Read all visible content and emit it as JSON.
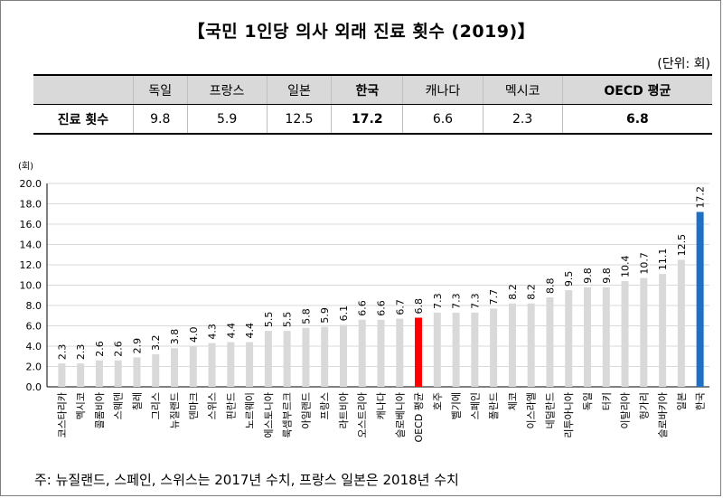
{
  "title": "【국민 1인당 의사 외래 진료 횟수 (2019)】",
  "unit": "(단위: 회)",
  "summary_table": {
    "row_label": "진료 횟수",
    "columns": [
      {
        "name": "독일",
        "value": "9.8",
        "bold": false
      },
      {
        "name": "프랑스",
        "value": "5.9",
        "bold": false
      },
      {
        "name": "일본",
        "value": "12.5",
        "bold": false
      },
      {
        "name": "한국",
        "value": "17.2",
        "bold": true
      },
      {
        "name": "캐나다",
        "value": "6.6",
        "bold": false
      },
      {
        "name": "멕시코",
        "value": "2.3",
        "bold": false
      },
      {
        "name": "OECD 평균",
        "value": "6.8",
        "bold": true
      }
    ]
  },
  "chart_data": {
    "type": "bar",
    "ylabel": "(회)",
    "ylim": [
      0,
      20
    ],
    "ytick_step": 2,
    "grid": true,
    "categories": [
      "코스타리카",
      "멕시코",
      "콜롬비아",
      "스웨덴",
      "칠레",
      "그리스",
      "뉴질랜드",
      "덴마크",
      "스위스",
      "핀란드",
      "노르웨이",
      "에스토니아",
      "룩셈부르크",
      "아일랜드",
      "프랑스",
      "라트비아",
      "오스트리아",
      "캐나다",
      "슬로베니아",
      "OECD 평균",
      "호주",
      "벨기에",
      "스페인",
      "폴란드",
      "체코",
      "이스라엘",
      "네덜란드",
      "리투아니아",
      "독일",
      "터키",
      "이탈리아",
      "헝가리",
      "슬로바키아",
      "일본",
      "한국"
    ],
    "values": [
      2.3,
      2.3,
      2.6,
      2.6,
      2.9,
      3.2,
      3.8,
      4.0,
      4.3,
      4.4,
      4.4,
      5.5,
      5.5,
      5.8,
      5.9,
      6.1,
      6.6,
      6.6,
      6.7,
      6.8,
      7.3,
      7.3,
      7.3,
      7.7,
      8.2,
      8.2,
      8.8,
      9.5,
      9.8,
      9.8,
      10.4,
      10.7,
      11.1,
      12.5,
      17.2
    ],
    "value_labels": [
      "2.3",
      "2.3",
      "2.6",
      "2.6",
      "2.9",
      "3.2",
      "3.8",
      "4.0",
      "4.3",
      "4.4",
      "4.4",
      "5.5",
      "5.5",
      "5.8",
      "5.9",
      "6.1",
      "6.6",
      "6.6",
      "6.7",
      "6.8",
      "7.3",
      "7.3",
      "7.3",
      "7.7",
      "8.2",
      "8.2",
      "8.8",
      "9.5",
      "9.8",
      "9.8",
      "10.4",
      "10.7",
      "11.1",
      "12.5",
      "17.2"
    ],
    "colors": {
      "default": "#d9d9d9",
      "highlight_oecd": "#ff0000",
      "highlight_korea": "#1f6fc5",
      "grid": "#d9d9d9",
      "axis": "#000000"
    },
    "highlight": {
      "OECD 평균": "#ff0000",
      "한국": "#1f6fc5"
    }
  },
  "note": "주: 뉴질랜드, 스페인, 스위스는 2017년 수치, 프랑스 일본은 2018년 수치"
}
